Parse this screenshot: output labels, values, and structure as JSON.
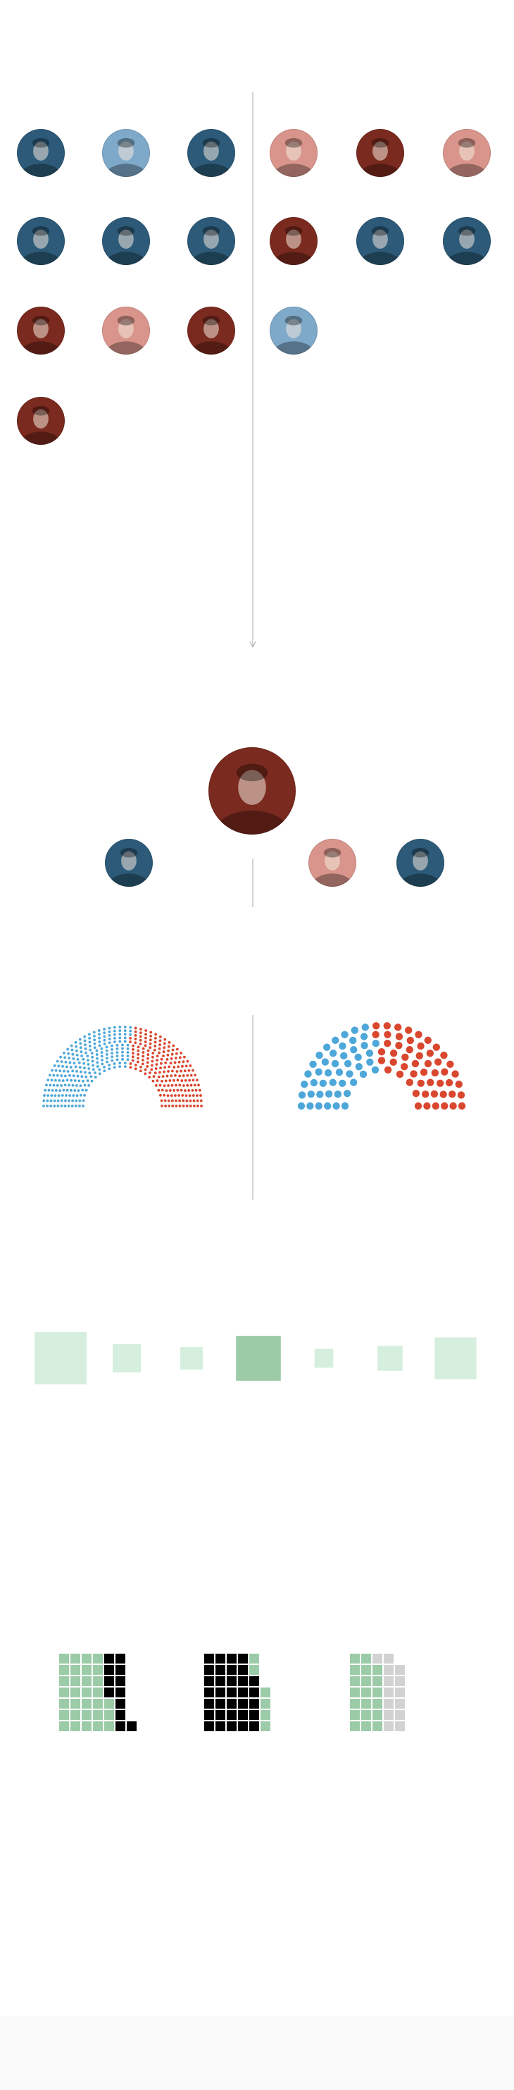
{
  "portraits": {
    "section_one": [
      {
        "party": "democrat",
        "tone": "dark"
      },
      {
        "party": "democrat",
        "tone": "light"
      },
      {
        "party": "democrat",
        "tone": "dark"
      },
      {
        "party": "republican",
        "tone": "light"
      },
      {
        "party": "republican",
        "tone": "dark"
      },
      {
        "party": "republican",
        "tone": "light"
      },
      {
        "party": "democrat",
        "tone": "dark"
      },
      {
        "party": "democrat",
        "tone": "dark"
      },
      {
        "party": "democrat",
        "tone": "dark"
      },
      {
        "party": "republican",
        "tone": "dark"
      },
      {
        "party": "democrat",
        "tone": "dark"
      },
      {
        "party": "democrat",
        "tone": "dark"
      },
      {
        "party": "republican",
        "tone": "dark"
      },
      {
        "party": "republican",
        "tone": "light"
      },
      {
        "party": "republican",
        "tone": "dark"
      },
      {
        "party": "democrat",
        "tone": "light"
      },
      {
        "party": "republican",
        "tone": "dark"
      }
    ],
    "section_two": [
      {
        "role": "president",
        "party": "republican",
        "tone": "dark"
      },
      {
        "role": "house-leader",
        "party": "democrat",
        "tone": "dark"
      },
      {
        "role": "senate-leader",
        "party": "republican",
        "tone": "light"
      },
      {
        "role": "senate-minority-leader",
        "party": "democrat",
        "tone": "dark"
      }
    ]
  },
  "chart_data": [
    {
      "type": "parliament",
      "chamber": "house",
      "total": 435,
      "series": [
        {
          "party": "democrat",
          "seats": 235
        },
        {
          "party": "republican",
          "seats": 200
        }
      ]
    },
    {
      "type": "parliament",
      "chamber": "senate",
      "total": 100,
      "series": [
        {
          "party": "democrat",
          "seats": 47
        },
        {
          "party": "republican",
          "seats": 53
        }
      ]
    },
    {
      "type": "squares",
      "values": [
        1.0,
        0.54,
        0.43,
        0.86,
        0.36,
        0.48,
        0.8
      ],
      "highlight_index": 3
    },
    {
      "type": "waffle",
      "groups": [
        {
          "green": 31,
          "black": 12,
          "grey": 0
        },
        {
          "green": 6,
          "black": 33,
          "grey": 0
        },
        {
          "green": 20,
          "black": 0,
          "grey": 14
        }
      ]
    }
  ],
  "colors": {
    "democrat_dark": "#2c5a78",
    "democrat_light": "#7fa9c9",
    "republican_dark": "#7a2a1e",
    "republican_light": "#d9958b",
    "dem_seat": "#4ea7d9",
    "rep_seat": "#d9472e",
    "square_light": "#d5eedd",
    "square_highlight": "#9ccba8",
    "waffle_green": "#9ccba8",
    "waffle_black": "#000000",
    "waffle_grey": "#d2d2d2",
    "divider": "#aaaaaa",
    "face": "#f3e7dc"
  }
}
